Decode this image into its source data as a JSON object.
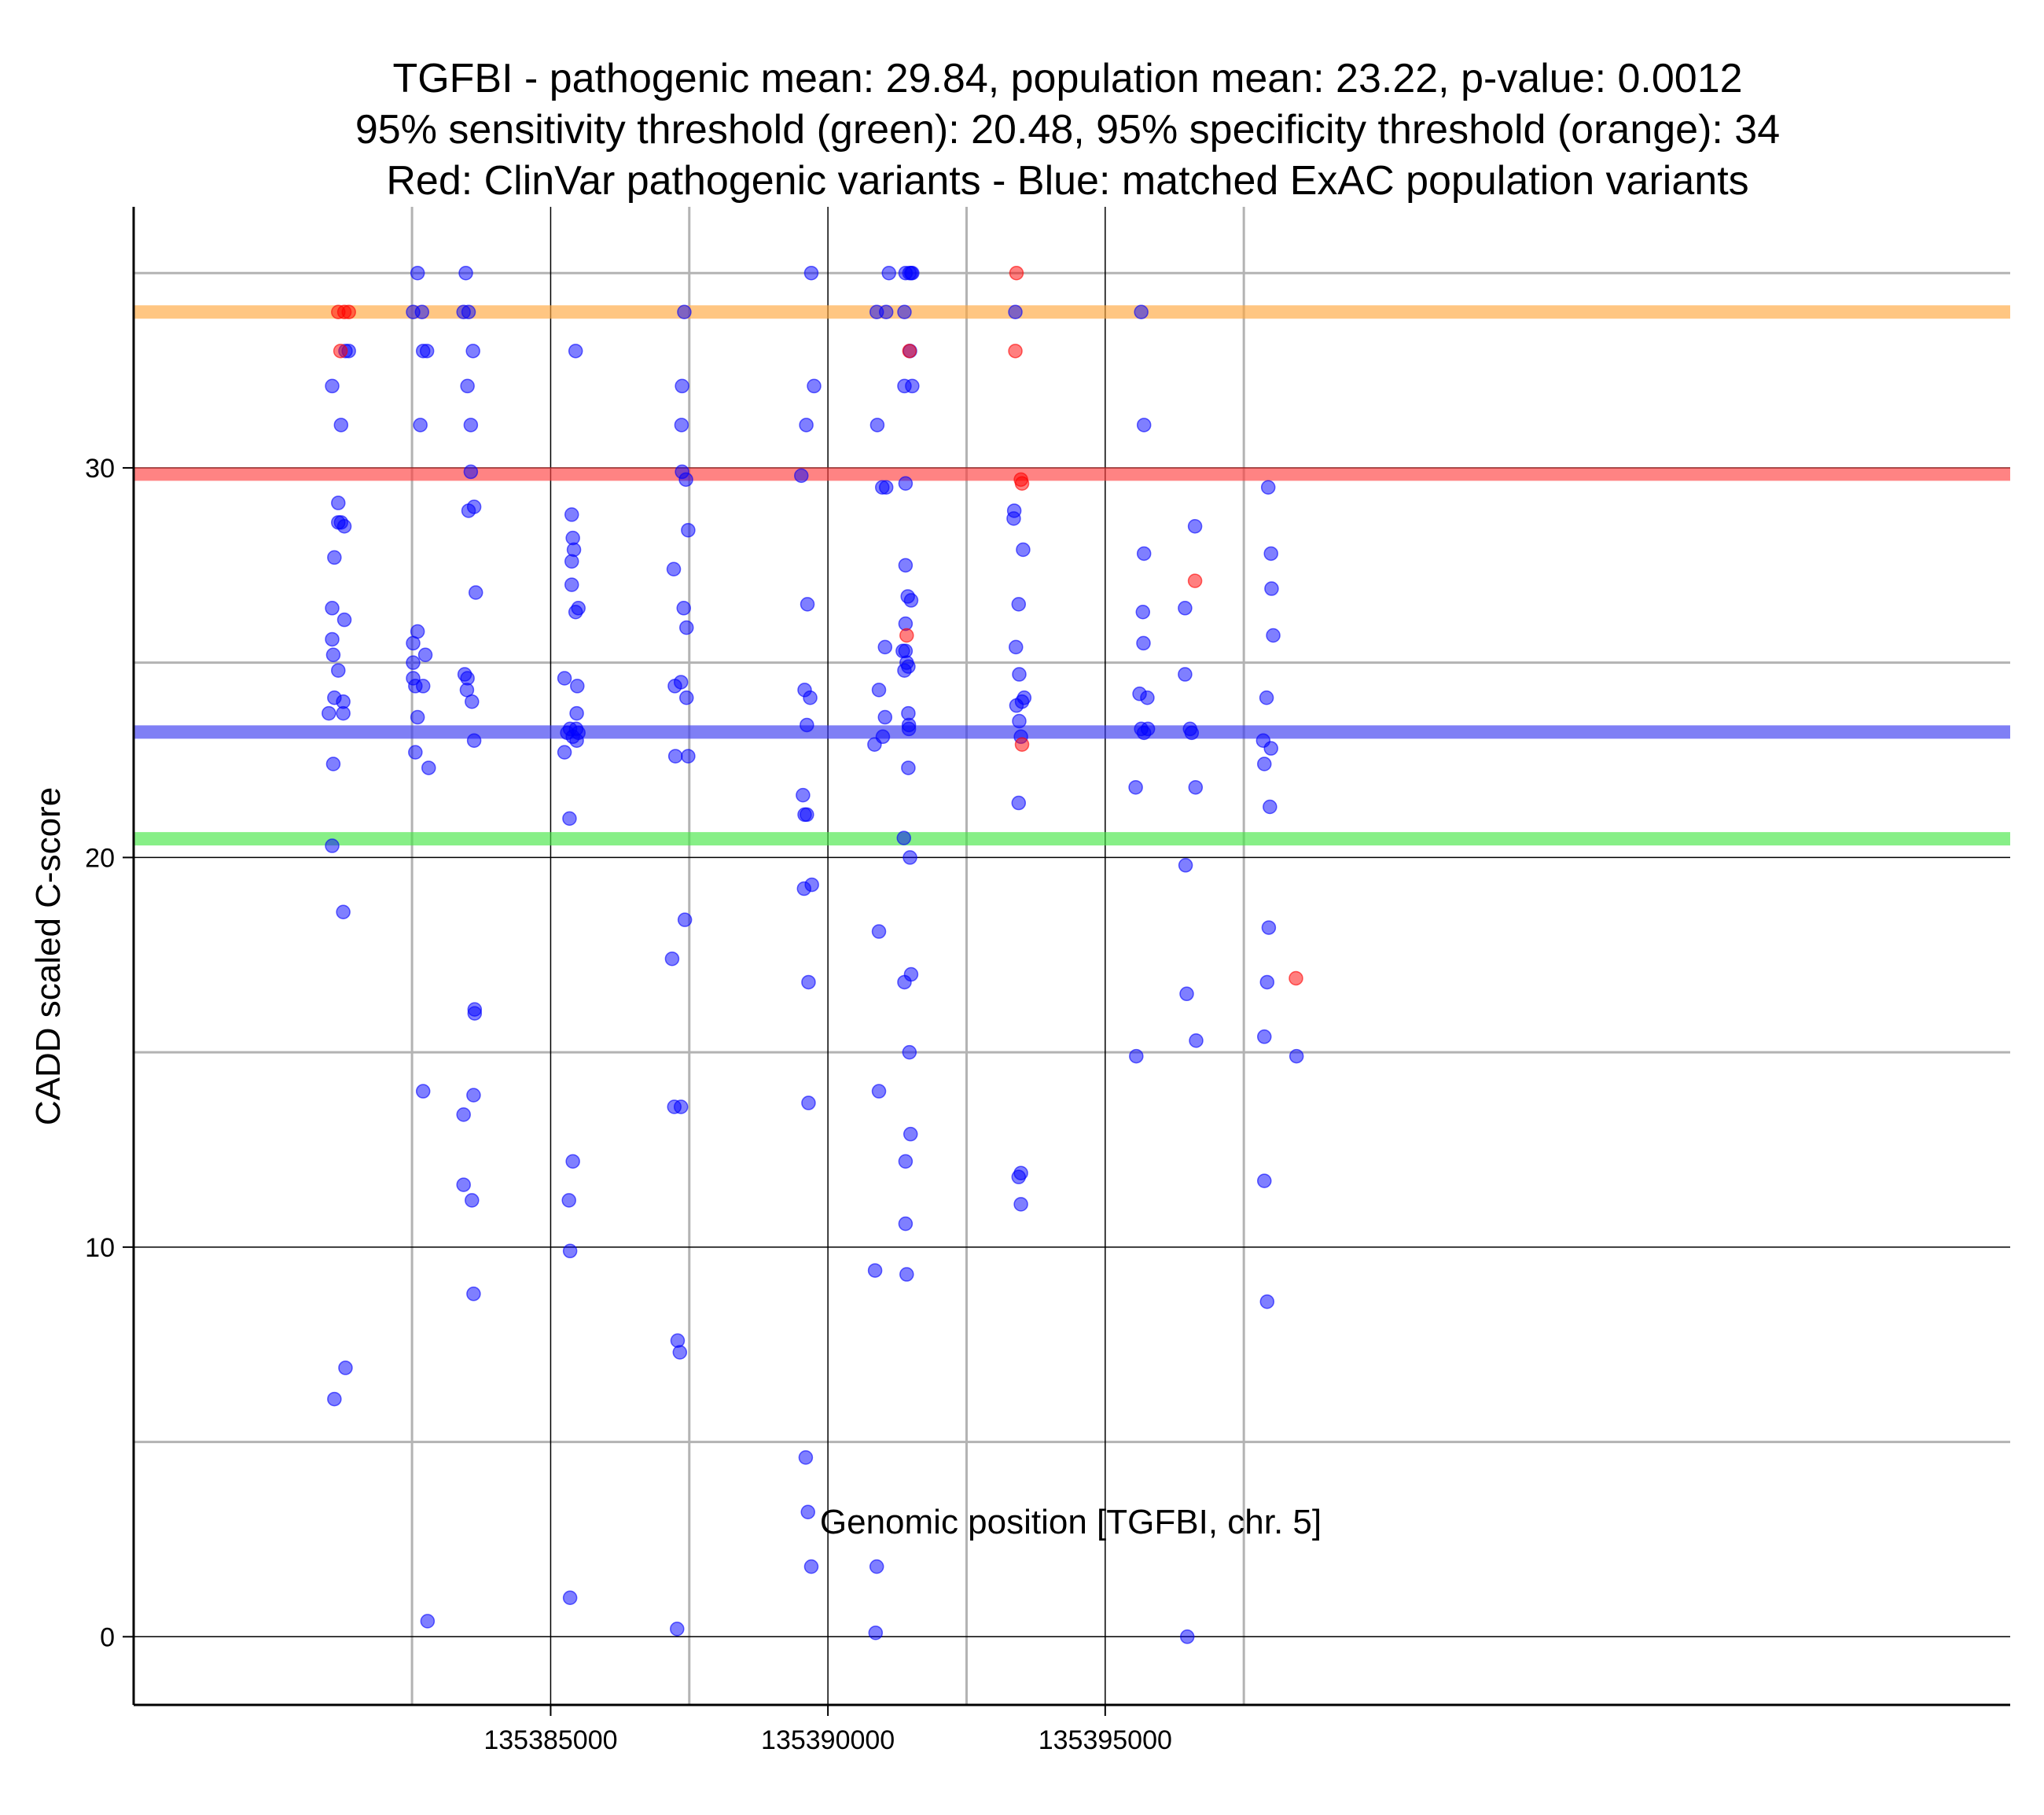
{
  "chart_data": {
    "type": "scatter",
    "title_lines": [
      "TGFBI - pathogenic mean: 29.84, population mean: 23.22, p-value: 0.0012",
      "95% sensitivity threshold (green): 20.48, 95% specificity threshold (orange): 34",
      "Red: ClinVar pathogenic variants - Blue: matched ExAC population variants"
    ],
    "xlabel": "Genomic position [TGFBI, chr. 5]",
    "ylabel": "CADD scaled C-score",
    "xlim": [
      135377480,
      135411320
    ],
    "ylim": [
      -1.75,
      36.7
    ],
    "x_major_ticks": [
      135385000,
      135390000,
      135395000
    ],
    "x_minor_grid": [
      135382500,
      135387500,
      135392500,
      135397500
    ],
    "y_major_ticks": [
      0,
      10,
      20,
      30
    ],
    "y_minor_grid": [
      5,
      15,
      25,
      35
    ],
    "hlines": [
      {
        "name": "specificity-threshold",
        "label": "95% specificity threshold (orange)",
        "value": 34,
        "color": "#FFA73F"
      },
      {
        "name": "pathogenic-mean",
        "label": "pathogenic mean",
        "value": 29.84,
        "color": "#FF4040"
      },
      {
        "name": "population-mean",
        "label": "population mean",
        "value": 23.22,
        "color": "#3A3AF0"
      },
      {
        "name": "sensitivity-threshold",
        "label": "95% sensitivity threshold (green)",
        "value": 20.48,
        "color": "#46E646"
      }
    ],
    "series": [
      {
        "name": "ClinVar pathogenic variants",
        "color": "#FF0000",
        "points": [
          [
            135381170,
            34
          ],
          [
            135381280,
            34
          ],
          [
            135381360,
            34
          ],
          [
            135381210,
            33
          ],
          [
            135391470,
            33
          ],
          [
            135391420,
            25.7
          ],
          [
            135393400,
            35
          ],
          [
            135393380,
            33
          ],
          [
            135393500,
            29.6
          ],
          [
            135393480,
            29.7
          ],
          [
            135393500,
            22.9
          ],
          [
            135396620,
            27.1
          ],
          [
            135398440,
            16.9
          ]
        ]
      },
      {
        "name": "matched ExAC population variants",
        "color": "#0000FF",
        "points": [
          [
            135381000,
            23.7
          ],
          [
            135381080,
            22.4
          ],
          [
            135381060,
            20.3
          ],
          [
            135381100,
            6.1
          ],
          [
            135381170,
            28.6
          ],
          [
            135381170,
            29.1
          ],
          [
            135381220,
            28.6
          ],
          [
            135381280,
            28.5
          ],
          [
            135381100,
            27.7
          ],
          [
            135381060,
            26.4
          ],
          [
            135381060,
            25.6
          ],
          [
            135381080,
            25.2
          ],
          [
            135381170,
            24.8
          ],
          [
            135381100,
            24.1
          ],
          [
            135381260,
            24
          ],
          [
            135381260,
            23.7
          ],
          [
            135381280,
            26.1
          ],
          [
            135381260,
            18.6
          ],
          [
            135381300,
            6.9
          ],
          [
            135381060,
            32.1
          ],
          [
            135381220,
            31.1
          ],
          [
            135381300,
            33
          ],
          [
            135381360,
            33
          ],
          [
            135382600,
            35
          ],
          [
            135382520,
            34
          ],
          [
            135382680,
            34
          ],
          [
            135382770,
            33
          ],
          [
            135382700,
            33
          ],
          [
            135382650,
            31.1
          ],
          [
            135382520,
            25.5
          ],
          [
            135382600,
            25.8
          ],
          [
            135382520,
            25
          ],
          [
            135382520,
            24.6
          ],
          [
            135382560,
            24.4
          ],
          [
            135382700,
            24.4
          ],
          [
            135382740,
            25.2
          ],
          [
            135382600,
            23.6
          ],
          [
            135382560,
            22.7
          ],
          [
            135382800,
            22.3
          ],
          [
            135382700,
            14
          ],
          [
            135382780,
            0.4
          ],
          [
            135383470,
            35
          ],
          [
            135383430,
            34
          ],
          [
            135383520,
            34
          ],
          [
            135383600,
            33
          ],
          [
            135383500,
            32.1
          ],
          [
            135383560,
            31.1
          ],
          [
            135383560,
            29.9
          ],
          [
            135383520,
            28.9
          ],
          [
            135383620,
            29
          ],
          [
            135383650,
            26.8
          ],
          [
            135383450,
            24.7
          ],
          [
            135383500,
            24.6
          ],
          [
            135383490,
            24.3
          ],
          [
            135383580,
            24
          ],
          [
            135383620,
            23
          ],
          [
            135383630,
            16
          ],
          [
            135383630,
            16.1
          ],
          [
            135383610,
            13.9
          ],
          [
            135383430,
            13.4
          ],
          [
            135383430,
            11.6
          ],
          [
            135383580,
            11.2
          ],
          [
            135383610,
            8.8
          ],
          [
            135385450,
            33
          ],
          [
            135385380,
            28.8
          ],
          [
            135385400,
            28.2
          ],
          [
            135385420,
            27.9
          ],
          [
            135385380,
            27.6
          ],
          [
            135385380,
            27
          ],
          [
            135385500,
            26.4
          ],
          [
            135385450,
            26.3
          ],
          [
            135385250,
            24.6
          ],
          [
            135385480,
            24.4
          ],
          [
            135385300,
            23.2
          ],
          [
            135385350,
            23.3
          ],
          [
            135385400,
            23.1
          ],
          [
            135385460,
            23.3
          ],
          [
            135385500,
            23.2
          ],
          [
            135385470,
            23.7
          ],
          [
            135385470,
            23
          ],
          [
            135385250,
            22.7
          ],
          [
            135385340,
            21
          ],
          [
            135385400,
            12.2
          ],
          [
            135385330,
            11.2
          ],
          [
            135385350,
            9.9
          ],
          [
            135385350,
            1
          ],
          [
            135387410,
            34
          ],
          [
            135387370,
            32.1
          ],
          [
            135387360,
            31.1
          ],
          [
            135387370,
            29.9
          ],
          [
            135387440,
            29.7
          ],
          [
            135387480,
            28.4
          ],
          [
            135387220,
            27.4
          ],
          [
            135387400,
            26.4
          ],
          [
            135387450,
            25.9
          ],
          [
            135387240,
            24.4
          ],
          [
            135387350,
            24.5
          ],
          [
            135387450,
            24.1
          ],
          [
            135387250,
            22.6
          ],
          [
            135387480,
            22.6
          ],
          [
            135387420,
            18.4
          ],
          [
            135387190,
            17.4
          ],
          [
            135387230,
            13.6
          ],
          [
            135387350,
            13.6
          ],
          [
            135387290,
            7.6
          ],
          [
            135387330,
            7.3
          ],
          [
            135387280,
            0.2
          ],
          [
            135389700,
            35
          ],
          [
            135389750,
            32.1
          ],
          [
            135389610,
            31.1
          ],
          [
            135389520,
            29.8
          ],
          [
            135389630,
            26.5
          ],
          [
            135389580,
            24.3
          ],
          [
            135389680,
            24.1
          ],
          [
            135389620,
            23.4
          ],
          [
            135389550,
            21.6
          ],
          [
            135389580,
            21.1
          ],
          [
            135389620,
            21.1
          ],
          [
            135389570,
            19.2
          ],
          [
            135389710,
            19.3
          ],
          [
            135389650,
            16.8
          ],
          [
            135389650,
            13.7
          ],
          [
            135389600,
            4.6
          ],
          [
            135389640,
            3.2
          ],
          [
            135389700,
            1.8
          ],
          [
            135391100,
            35
          ],
          [
            135390880,
            34
          ],
          [
            135391050,
            34
          ],
          [
            135390890,
            31.1
          ],
          [
            135390980,
            29.5
          ],
          [
            135391050,
            29.5
          ],
          [
            135391030,
            25.4
          ],
          [
            135390920,
            24.3
          ],
          [
            135391030,
            23.6
          ],
          [
            135390990,
            23.1
          ],
          [
            135390840,
            22.9
          ],
          [
            135390920,
            18.1
          ],
          [
            135390920,
            14
          ],
          [
            135390850,
            9.4
          ],
          [
            135390880,
            1.8
          ],
          [
            135390860,
            0.1
          ],
          [
            135391400,
            35
          ],
          [
            135391470,
            35
          ],
          [
            135391520,
            35
          ],
          [
            135391500,
            35
          ],
          [
            135391380,
            34
          ],
          [
            135391480,
            33
          ],
          [
            135391380,
            32.1
          ],
          [
            135391520,
            32.1
          ],
          [
            135391400,
            29.6
          ],
          [
            135391400,
            27.5
          ],
          [
            135391440,
            26.7
          ],
          [
            135391500,
            26.6
          ],
          [
            135391400,
            26
          ],
          [
            135391350,
            25.3
          ],
          [
            135391400,
            25.3
          ],
          [
            135391420,
            25
          ],
          [
            135391450,
            24.9
          ],
          [
            135391380,
            24.8
          ],
          [
            135391450,
            23.7
          ],
          [
            135391460,
            23.4
          ],
          [
            135391460,
            23.3
          ],
          [
            135391450,
            22.3
          ],
          [
            135391480,
            20
          ],
          [
            135391370,
            20.5
          ],
          [
            135391500,
            17
          ],
          [
            135391380,
            16.8
          ],
          [
            135391470,
            15
          ],
          [
            135391490,
            12.9
          ],
          [
            135391400,
            12.2
          ],
          [
            135391400,
            10.6
          ],
          [
            135391420,
            9.3
          ],
          [
            135393380,
            34
          ],
          [
            135393360,
            28.9
          ],
          [
            135393350,
            28.7
          ],
          [
            135393520,
            27.9
          ],
          [
            135393440,
            26.5
          ],
          [
            135393390,
            25.4
          ],
          [
            135393450,
            24.7
          ],
          [
            135393400,
            23.9
          ],
          [
            135393500,
            24
          ],
          [
            135393540,
            24.1
          ],
          [
            135393450,
            23.5
          ],
          [
            135393480,
            23.1
          ],
          [
            135393440,
            21.4
          ],
          [
            135393440,
            11.8
          ],
          [
            135393480,
            11.9
          ],
          [
            135393480,
            11.1
          ],
          [
            135395650,
            34
          ],
          [
            135395700,
            31.1
          ],
          [
            135395700,
            27.8
          ],
          [
            135395680,
            26.3
          ],
          [
            135395690,
            25.5
          ],
          [
            135395620,
            24.2
          ],
          [
            135395760,
            24.1
          ],
          [
            135395650,
            23.3
          ],
          [
            135395770,
            23.3
          ],
          [
            135395700,
            23.2
          ],
          [
            135395550,
            21.8
          ],
          [
            135395560,
            14.9
          ],
          [
            135396620,
            28.5
          ],
          [
            135396440,
            26.4
          ],
          [
            135396440,
            24.7
          ],
          [
            135396530,
            23.3
          ],
          [
            135396560,
            23.2
          ],
          [
            135396630,
            21.8
          ],
          [
            135396450,
            19.8
          ],
          [
            135396470,
            16.5
          ],
          [
            135396640,
            15.3
          ],
          [
            135396480,
            0
          ],
          [
            135397940,
            29.5
          ],
          [
            135397990,
            27.8
          ],
          [
            135398000,
            26.9
          ],
          [
            135398030,
            25.7
          ],
          [
            135397910,
            24.1
          ],
          [
            135397850,
            23
          ],
          [
            135397990,
            22.8
          ],
          [
            135397870,
            22.4
          ],
          [
            135397970,
            21.3
          ],
          [
            135397950,
            18.2
          ],
          [
            135397920,
            16.8
          ],
          [
            135397870,
            15.4
          ],
          [
            135397870,
            11.7
          ],
          [
            135397920,
            8.6
          ],
          [
            135398450,
            14.9
          ]
        ]
      }
    ]
  }
}
